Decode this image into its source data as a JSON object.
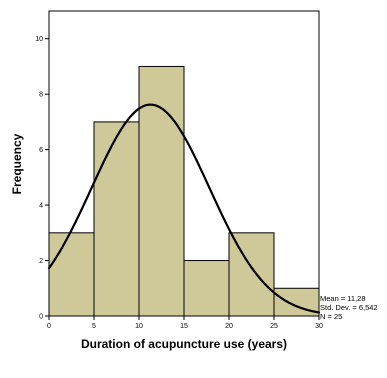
{
  "chart_data": {
    "type": "histogram",
    "xlabel": "Duration of acupuncture use (years)",
    "ylabel": "Frequency",
    "bins": [
      {
        "start": 0,
        "end": 5,
        "count": 3
      },
      {
        "start": 5,
        "end": 10,
        "count": 7
      },
      {
        "start": 10,
        "end": 15,
        "count": 9
      },
      {
        "start": 15,
        "end": 20,
        "count": 2
      },
      {
        "start": 20,
        "end": 25,
        "count": 3
      },
      {
        "start": 25,
        "end": 30,
        "count": 1
      }
    ],
    "xlim": [
      0,
      30
    ],
    "ylim": [
      0,
      11
    ],
    "x_ticks": [
      0,
      5,
      10,
      15,
      20,
      25,
      30
    ],
    "y_ticks": [
      0,
      2,
      4,
      6,
      8,
      10
    ],
    "grid": false,
    "bar_color": "#cfc99a",
    "bar_edge_color": "#000000",
    "curve": {
      "type": "normal",
      "mean": 11.28,
      "sd": 6.542,
      "n": 25,
      "color": "#000000"
    },
    "stats": {
      "mean_text": "Mean = 11,28",
      "sd_text": "Std. Dev. = 6,542",
      "n_text": "N = 25"
    }
  }
}
